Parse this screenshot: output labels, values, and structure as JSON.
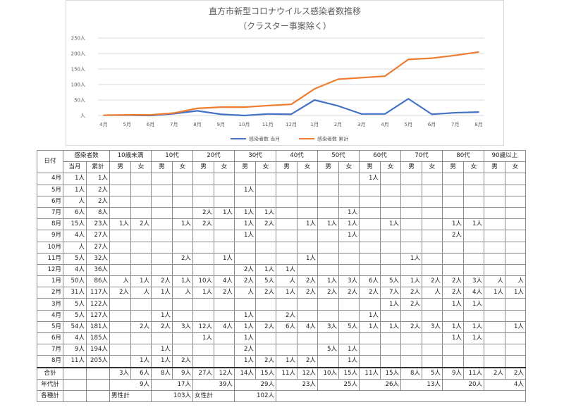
{
  "chart_data": {
    "type": "line",
    "title": "直方市新型コロナウイルス感染者数推移",
    "subtitle": "（クラスター事案除く）",
    "categories": [
      "4月",
      "5月",
      "6月",
      "7月",
      "8月",
      "9月",
      "10月",
      "11月",
      "12月",
      "1月",
      "2月",
      "3月",
      "4月",
      "5月",
      "6月",
      "7月",
      "8月"
    ],
    "y_ticks": [
      "250人",
      "200人",
      "150人",
      "100人",
      "50人",
      "人"
    ],
    "ylim": [
      0,
      250
    ],
    "grid": true,
    "legend_position": "bottom",
    "series": [
      {
        "name": "感染者数 当月",
        "color": "#4472c4",
        "values": [
          1,
          1,
          0,
          6,
          15,
          4,
          0,
          5,
          4,
          50,
          31,
          5,
          5,
          54,
          4,
          9,
          11
        ]
      },
      {
        "name": "感染者数 累計",
        "color": "#ed7d31",
        "values": [
          1,
          2,
          2,
          8,
          23,
          27,
          27,
          32,
          36,
          86,
          117,
          122,
          127,
          181,
          185,
          194,
          205
        ]
      }
    ]
  },
  "table": {
    "header_top": {
      "date": "日付",
      "infected": "感染者数",
      "age_groups": [
        "10歳未満",
        "10代",
        "20代",
        "30代",
        "40代",
        "50代",
        "60代",
        "70代",
        "80代",
        "90歳以上"
      ]
    },
    "header_sub": {
      "monthly": "当月",
      "cumulative": "累計",
      "male": "男",
      "female": "女"
    },
    "rows": [
      [
        "4月",
        "1人",
        "1人",
        "",
        "",
        "",
        "",
        "",
        "",
        "",
        "",
        "",
        "",
        "",
        "",
        "1人",
        "",
        "",
        "",
        "",
        "",
        "",
        ""
      ],
      [
        "5月",
        "1人",
        "2人",
        "",
        "",
        "",
        "",
        "",
        "",
        "1人",
        "",
        "",
        "",
        "",
        "",
        "",
        "",
        "",
        "",
        "",
        "",
        "",
        ""
      ],
      [
        "6月",
        "人",
        "2人",
        "",
        "",
        "",
        "",
        "",
        "",
        "",
        "",
        "",
        "",
        "",
        "",
        "",
        "",
        "",
        "",
        "",
        "",
        "",
        ""
      ],
      [
        "7月",
        "6人",
        "8人",
        "",
        "",
        "",
        "",
        "2人",
        "1人",
        "1人",
        "1人",
        "",
        "",
        "",
        "1人",
        "",
        "",
        "",
        "",
        "",
        "",
        "",
        ""
      ],
      [
        "8月",
        "15人",
        "23人",
        "1人",
        "2人",
        "",
        "1人",
        "2人",
        "",
        "1人",
        "2人",
        "",
        "1人",
        "1人",
        "1人",
        "",
        "1人",
        "",
        "",
        "1人",
        "1人",
        "",
        ""
      ],
      [
        "9月",
        "4人",
        "27人",
        "",
        "",
        "",
        "",
        "",
        "",
        "1人",
        "",
        "",
        "",
        "",
        "1人",
        "",
        "",
        "",
        "",
        "2人",
        "",
        "",
        ""
      ],
      [
        "10月",
        "人",
        "27人",
        "",
        "",
        "",
        "",
        "",
        "",
        "",
        "",
        "",
        "",
        "",
        "",
        "",
        "",
        "",
        "",
        "",
        "",
        "",
        ""
      ],
      [
        "11月",
        "5人",
        "32人",
        "",
        "",
        "",
        "2人",
        "",
        "1人",
        "",
        "",
        "",
        "1人",
        "",
        "",
        "",
        "",
        "1人",
        "",
        "",
        "",
        "",
        ""
      ],
      [
        "12月",
        "4人",
        "36人",
        "",
        "",
        "",
        "",
        "",
        "",
        "2人",
        "1人",
        "1人",
        "",
        "",
        "",
        "",
        "",
        "",
        "",
        "",
        "",
        "",
        ""
      ],
      [
        "1月",
        "50人",
        "86人",
        "人",
        "1人",
        "2人",
        "1人",
        "10人",
        "4人",
        "2人",
        "5人",
        "人",
        "2人",
        "1人",
        "3人",
        "6人",
        "5人",
        "1人",
        "2人",
        "2人",
        "3人",
        "人",
        "人"
      ],
      [
        "2月",
        "31人",
        "117人",
        "2人",
        "人",
        "1人",
        "人",
        "1人",
        "2人",
        "人",
        "2人",
        "1人",
        "2人",
        "2人",
        "2人",
        "2人",
        "7人",
        "2人",
        "人",
        "2人",
        "4人",
        "1人",
        "1人"
      ],
      [
        "3月",
        "5人",
        "122人",
        "",
        "",
        "",
        "",
        "",
        "",
        "",
        "",
        "",
        "",
        "",
        "",
        "",
        "1人",
        "2人",
        "",
        "1人",
        "1人",
        "",
        ""
      ],
      [
        "4月",
        "5人",
        "127人",
        "",
        "",
        "1人",
        "",
        "",
        "",
        "1人",
        "",
        "2人",
        "",
        "",
        "",
        "1人",
        "",
        "",
        "",
        "",
        "",
        "",
        ""
      ],
      [
        "5月",
        "54人",
        "181人",
        "",
        "2人",
        "2人",
        "3人",
        "12人",
        "4人",
        "1人",
        "2人",
        "6人",
        "4人",
        "3人",
        "5人",
        "1人",
        "1人",
        "2人",
        "3人",
        "1人",
        "1人",
        "",
        "1人"
      ],
      [
        "6月",
        "4人",
        "185人",
        "",
        "",
        "",
        "",
        "1人",
        "",
        "1人",
        "",
        "",
        "",
        "",
        "",
        "",
        "",
        "",
        "",
        "1人",
        "1人",
        "",
        ""
      ],
      [
        "7月",
        "9人",
        "194人",
        "",
        "",
        "1人",
        "",
        "",
        "",
        "2人",
        "",
        "",
        "",
        "5人",
        "1人",
        "",
        "",
        "",
        "",
        "",
        "",
        "",
        ""
      ],
      [
        "8月",
        "11人",
        "205人",
        "",
        "1人",
        "1人",
        "2人",
        "",
        "",
        "1人",
        "2人",
        "1人",
        "2人",
        "",
        "1人",
        "",
        "",
        "",
        "",
        "",
        "",
        "",
        ""
      ]
    ],
    "total_row": {
      "label": "合計",
      "cells": [
        "3人",
        "6人",
        "8人",
        "9人",
        "27人",
        "12人",
        "14人",
        "15人",
        "11人",
        "12人",
        "10人",
        "15人",
        "11人",
        "15人",
        "8人",
        "5人",
        "9人",
        "11人",
        "2人",
        "2人"
      ]
    },
    "age_total_row": {
      "label": "年代計",
      "cells": [
        "9人",
        "17人",
        "39人",
        "29人",
        "23人",
        "25人",
        "26人",
        "13人",
        "20人",
        "4人"
      ]
    },
    "gender_total_row": {
      "label": "各種計",
      "male_label": "男性計",
      "male_value": "103人",
      "female_label": "女性計",
      "female_value": "102人"
    }
  }
}
